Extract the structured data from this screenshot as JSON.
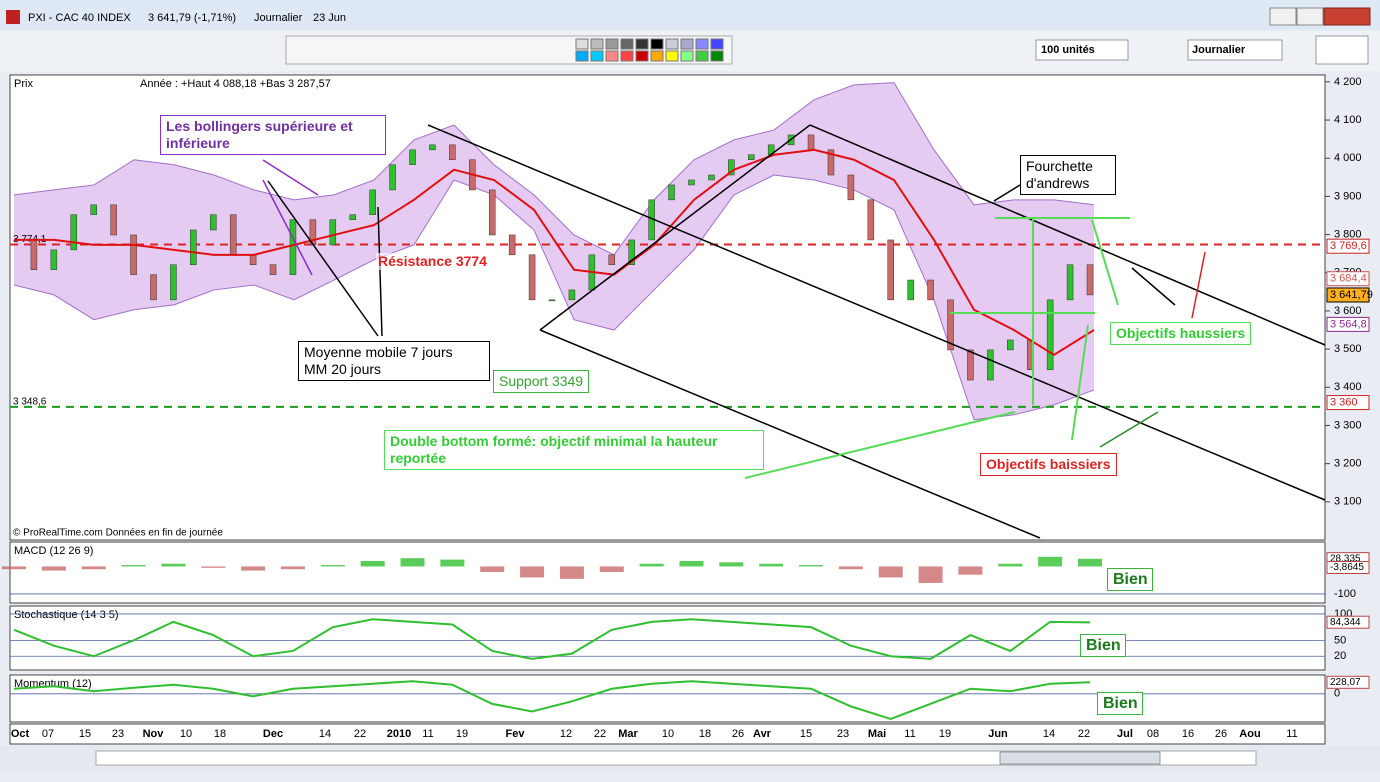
{
  "window": {
    "title": "PXI - CAC 40 INDEX",
    "quote": "3 641,79 (-1,71%)",
    "period": "Journalier",
    "date": "23 Jun"
  },
  "toolbar": {
    "units": "100 unités",
    "period": "Journalier"
  },
  "chart_data": {
    "type": "stock",
    "panel_title": "Prix",
    "range_note": "Année : +Haut 4 088,18 +Bas 3 287,57",
    "credit": "© ProRealTime.com  Données en fin de journée",
    "ylim": [
      3000,
      4218
    ],
    "yticks": [
      {
        "value": 4200,
        "label": "4 200"
      },
      {
        "value": 4100,
        "label": "4 100"
      },
      {
        "value": 4000,
        "label": "4 000"
      },
      {
        "value": 3900,
        "label": "3 900"
      },
      {
        "value": 3800,
        "label": "3 800"
      },
      {
        "value": 3700,
        "label": "3 700"
      },
      {
        "value": 3600,
        "label": "3 600"
      },
      {
        "value": 3500,
        "label": "3 500"
      },
      {
        "value": 3400,
        "label": "3 400"
      },
      {
        "value": 3300,
        "label": "3 300"
      },
      {
        "value": 3200,
        "label": "3 200"
      },
      {
        "value": 3100,
        "label": "3 100"
      }
    ],
    "closes": [
      3786,
      3708,
      3760,
      3852,
      3878,
      3799,
      3695,
      3629,
      3721,
      3812,
      3852,
      3747,
      3721,
      3695,
      3839,
      3773,
      3839,
      3852,
      3917,
      3983,
      4022,
      4035,
      3996,
      3917,
      3799,
      3747,
      3629,
      3629,
      3655,
      3747,
      3721,
      3786,
      3891,
      3930,
      3943,
      3956,
      3996,
      4009,
      4035,
      4061,
      4022,
      3956,
      3891,
      3786,
      3629,
      3681,
      3629,
      3498,
      3419,
      3498,
      3524,
      3446,
      3629,
      3721,
      3642
    ],
    "up_color": "#2fbf2f",
    "down_color": "#c96a6a",
    "bands": {
      "upper": [
        3904,
        3917,
        3930,
        3996,
        3983,
        3956,
        3917,
        3891,
        3904,
        3943,
        4048,
        4087,
        3983,
        3904,
        3799,
        3747,
        3891,
        3996,
        4048,
        4074,
        4153,
        4192,
        4198,
        4022,
        3878,
        3891,
        3891,
        3878
      ],
      "lower": [
        3668,
        3642,
        3577,
        3603,
        3616,
        3655,
        3668,
        3629,
        3681,
        3734,
        3773,
        3943,
        3904,
        3812,
        3577,
        3550,
        3655,
        3760,
        3904,
        3956,
        3943,
        3917,
        3865,
        3629,
        3315,
        3328,
        3354,
        3393
      ],
      "ma20": [
        3786,
        3786,
        3773,
        3773,
        3760,
        3747,
        3747,
        3773,
        3799,
        3825,
        3891,
        3970,
        3943,
        3865,
        3708,
        3695,
        3773,
        3891,
        3970,
        4009,
        4022,
        3996,
        3943,
        3786,
        3603,
        3550,
        3485,
        3550
      ],
      "fill": "#dcb8ec",
      "stroke": "#a070c8",
      "ma_color": "#e01010"
    },
    "levels": [
      {
        "value": 3774.1,
        "label": "3 774,1",
        "color": "#dd2222"
      },
      {
        "value": 3348.6,
        "label": "3 348,6",
        "color": "#1a9a1a"
      }
    ],
    "price_tags": [
      {
        "value": 3769.6,
        "label": "3 769,6",
        "color": "#cc2222",
        "bg": "#ffffff"
      },
      {
        "value": 3684.4,
        "label": "3 684,4",
        "color": "#cc5555",
        "bg": "#ffffff"
      },
      {
        "value": 3641.79,
        "label": "3 641,79",
        "color": "#000000",
        "bg": "#ffb020"
      },
      {
        "value": 3564.8,
        "label": "3 564,8",
        "color": "#8a2a8a",
        "bg": "#ffffff"
      },
      {
        "value": 3360,
        "label": "3 360",
        "color": "#cc2222",
        "bg": "#ffffff"
      }
    ],
    "x_labels": [
      "Oct",
      "07",
      "15",
      "23",
      "Nov",
      "10",
      "18",
      "Dec",
      "14",
      "22",
      "2010",
      "11",
      "19",
      "Fev",
      "12",
      "22",
      "Mar",
      "10",
      "18",
      "26",
      "Avr",
      "15",
      "23",
      "Mai",
      "11",
      "19",
      "Jun",
      "14",
      "22",
      "Jul",
      "08",
      "16",
      "26",
      "Aou",
      "11"
    ],
    "macd": {
      "title": "MACD (12 26 9)",
      "ylim": [
        -133,
        89
      ],
      "yticks": [
        -100
      ],
      "values": [
        -10,
        -15,
        -10,
        5,
        10,
        -5,
        -15,
        -10,
        5,
        20,
        30,
        25,
        -20,
        -40,
        -45,
        -20,
        10,
        20,
        15,
        10,
        5,
        -10,
        -40,
        -60,
        -30,
        10,
        35,
        28
      ],
      "tags": [
        {
          "value": 28.335,
          "label": "28,335"
        },
        {
          "value": -3.8645,
          "label": "-3,8645"
        }
      ]
    },
    "stochastic": {
      "title": "Stochastique (14 3 5)",
      "ylim": [
        -6,
        115
      ],
      "yticks": [
        100,
        50,
        20
      ],
      "values": [
        70,
        40,
        20,
        50,
        85,
        60,
        20,
        30,
        75,
        90,
        85,
        80,
        30,
        15,
        25,
        70,
        85,
        90,
        85,
        80,
        75,
        40,
        20,
        15,
        60,
        30,
        85,
        84
      ],
      "tags": [
        {
          "value": 84.344,
          "label": "84,344"
        }
      ]
    },
    "momentum": {
      "title": "Momentum (12)",
      "ylim": [
        -560,
        373
      ],
      "yticks": [
        0
      ],
      "values": [
        100,
        150,
        50,
        120,
        180,
        100,
        -50,
        100,
        150,
        200,
        250,
        180,
        -200,
        -350,
        -150,
        100,
        200,
        250,
        200,
        150,
        100,
        -250,
        -500,
        -200,
        100,
        50,
        200,
        228
      ],
      "tags": [
        {
          "value": 228.07,
          "label": "228,07"
        }
      ]
    }
  },
  "annotations": {
    "bollinger": "Les bollingers supérieure et inférieure",
    "andrews": "Fourchette d'andrews",
    "resistance": "Résistance 3774",
    "ma7": "Moyenne mobile 7 jours",
    "ma20": "MM 20 jours",
    "support": "Support 3349",
    "up_targets": "Objectifs haussiers",
    "double_bottom": "Double bottom formé: objectif minimal la hauteur reportée",
    "down_targets": "Objectifs baissiers",
    "good_macd": "Bien",
    "good_stoch": "Bien",
    "good_momentum": "Bien"
  }
}
